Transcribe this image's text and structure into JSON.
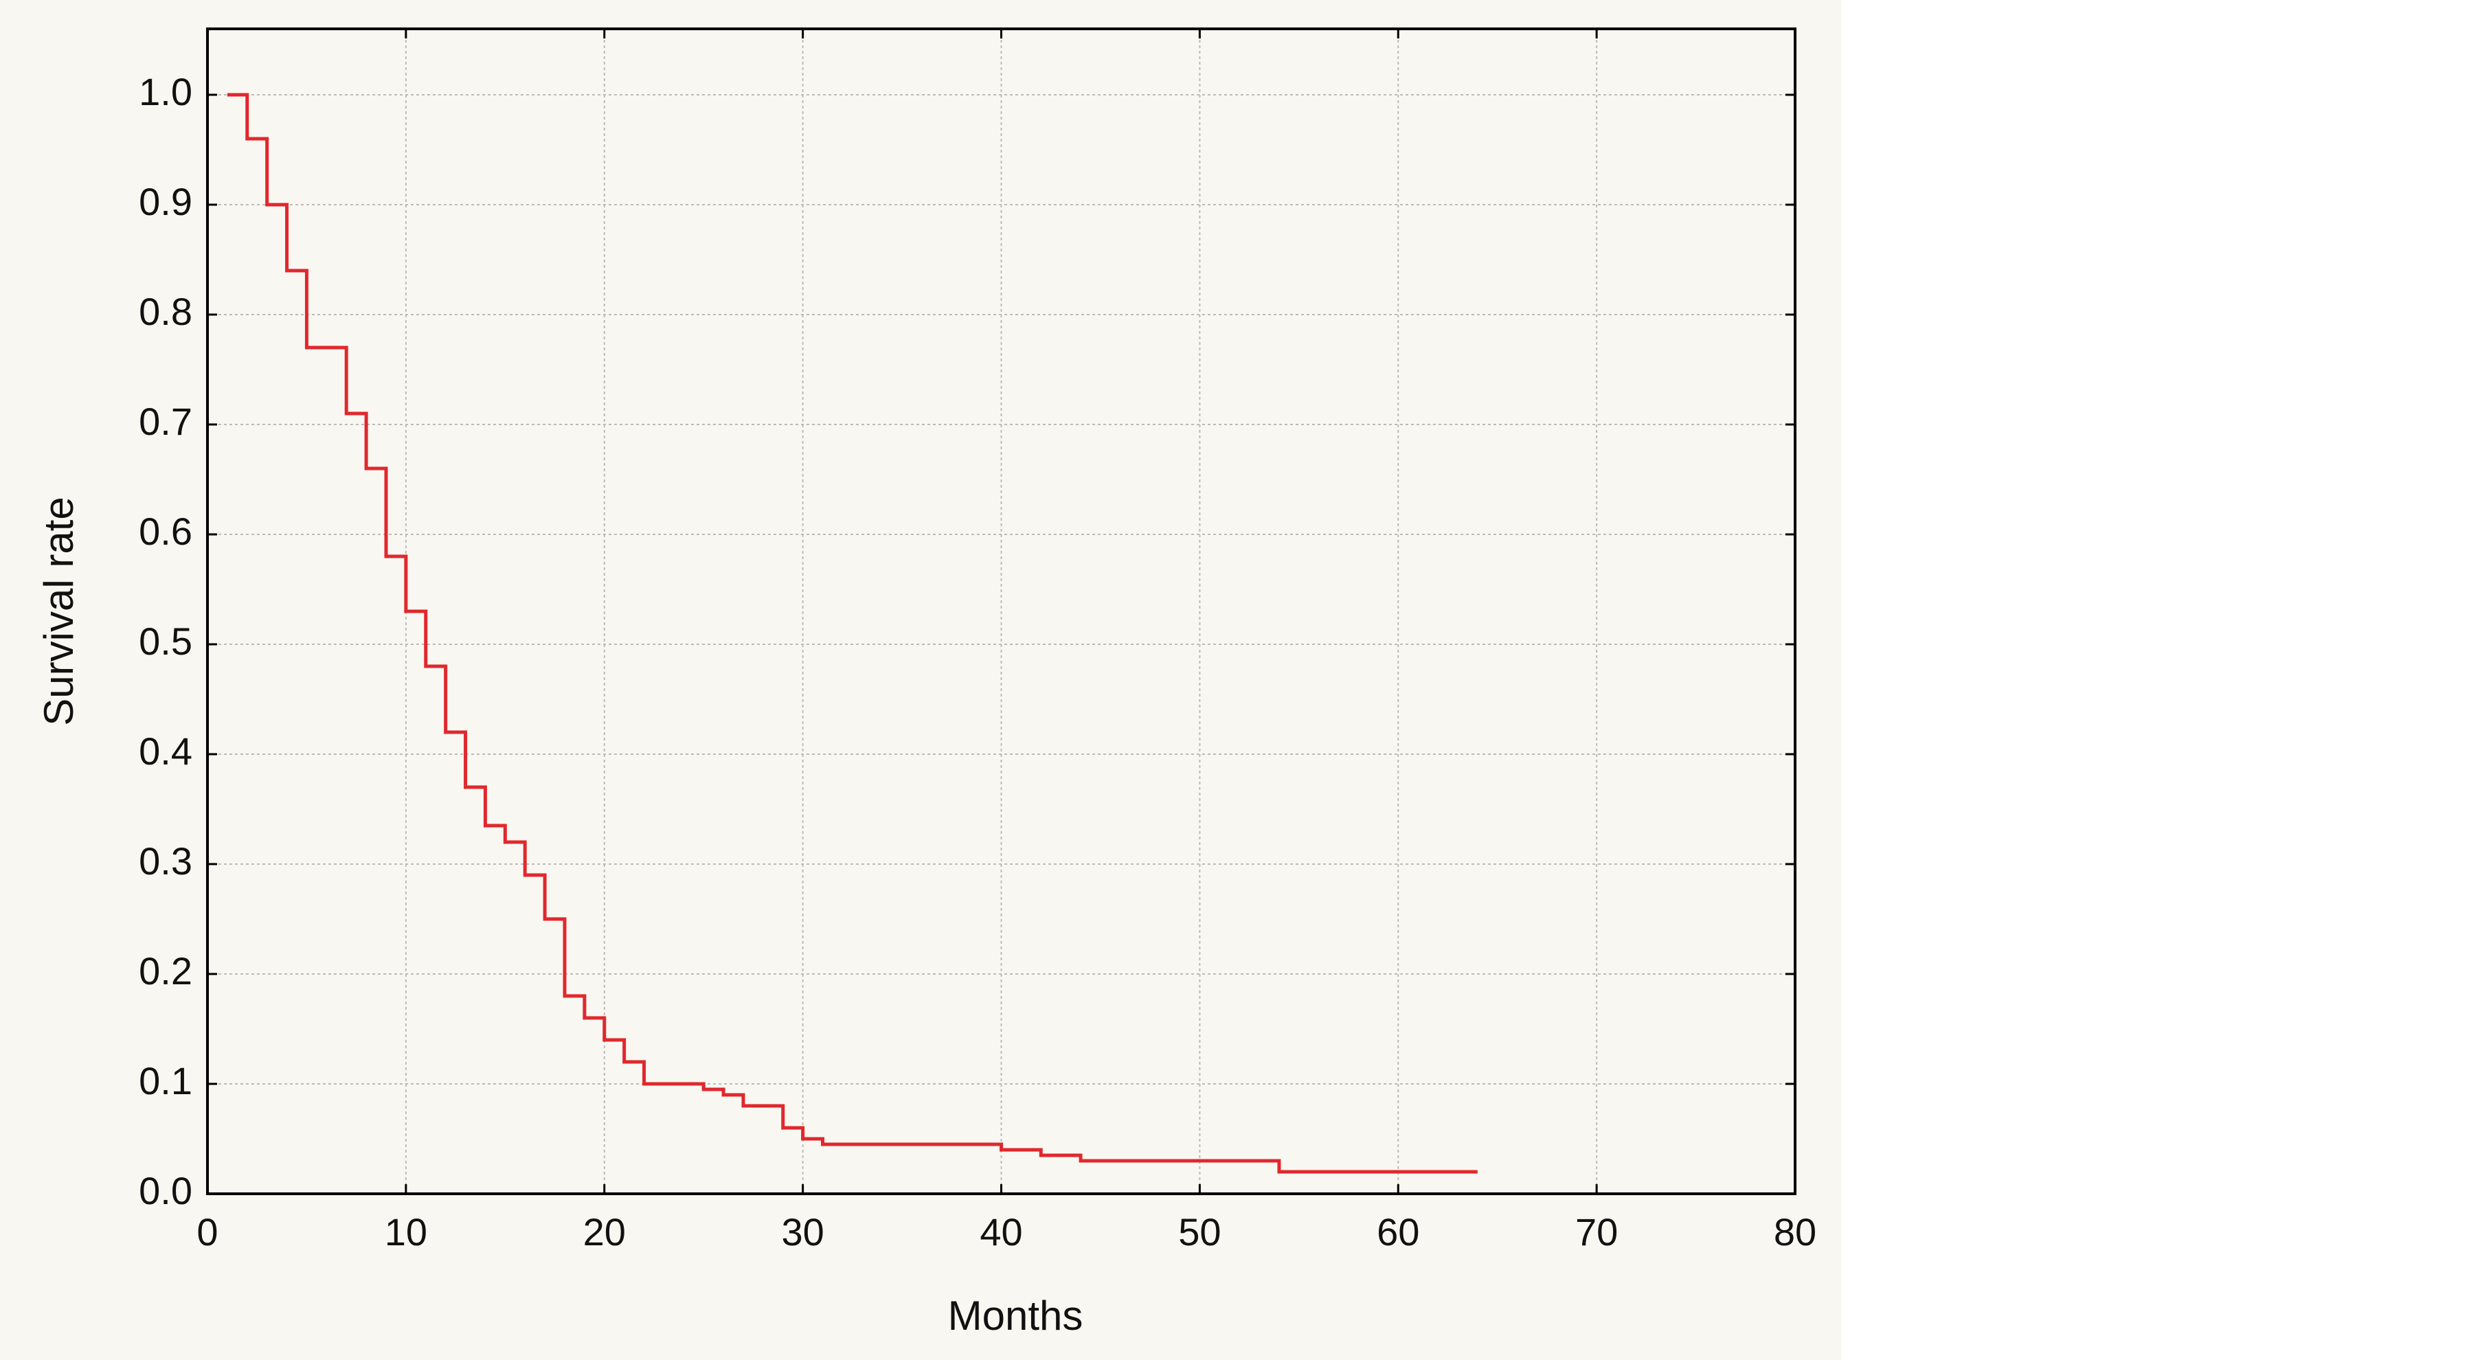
{
  "chart_data": {
    "type": "step",
    "x_label": "Months",
    "y_label": "Survival rate",
    "series": [
      {
        "color": "#e0282e",
        "x": [
          1,
          2,
          3,
          4,
          5,
          7,
          8,
          9,
          10,
          11,
          12,
          13,
          14,
          15,
          16,
          17,
          18,
          19,
          20,
          21,
          22,
          25,
          26,
          27,
          29,
          30,
          31,
          40,
          42,
          44,
          54,
          64
        ],
        "values": [
          1.0,
          0.96,
          0.9,
          0.84,
          0.77,
          0.71,
          0.66,
          0.58,
          0.53,
          0.48,
          0.42,
          0.37,
          0.335,
          0.32,
          0.29,
          0.25,
          0.18,
          0.16,
          0.14,
          0.12,
          0.1,
          0.095,
          0.09,
          0.08,
          0.06,
          0.05,
          0.045,
          0.04,
          0.035,
          0.03,
          0.02,
          0.02
        ]
      }
    ],
    "xlim": [
      0,
      80
    ],
    "xticks": [
      0,
      10,
      20,
      30,
      40,
      50,
      60,
      70,
      80
    ],
    "ylim": [
      0,
      1.06
    ],
    "yticks": [
      {
        "value": 0,
        "label": "0.0"
      },
      0.1,
      0.2,
      0.3,
      0.4,
      0.5,
      0.6,
      0.7,
      0.8,
      0.9,
      {
        "value": 1,
        "label": "1.0"
      }
    ],
    "grid": true
  }
}
